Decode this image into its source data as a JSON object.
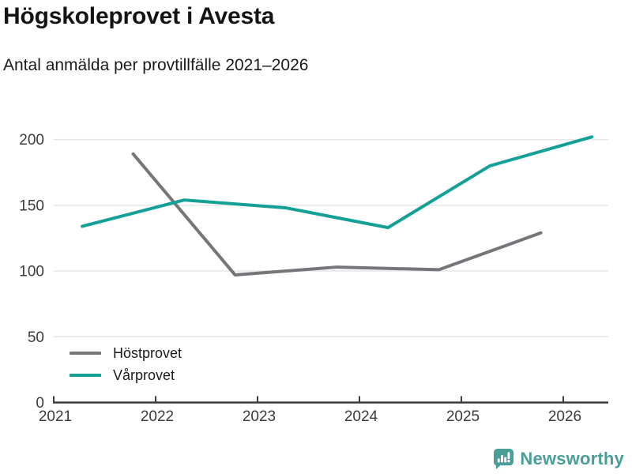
{
  "header": {
    "title": "Högskoleprovet i Avesta",
    "subtitle": "Antal anmälda per provtillfälle 2021–2026"
  },
  "chart_data": {
    "type": "line",
    "title": "Högskoleprovet i Avesta",
    "subtitle": "Antal anmälda per provtillfälle 2021–2026",
    "xlabel": "",
    "ylabel": "",
    "x_tick_labels": [
      "2021",
      "2022",
      "2023",
      "2024",
      "2025",
      "2026"
    ],
    "x_ticks": [
      2021,
      2022,
      2023,
      2024,
      2025,
      2026
    ],
    "y_tick_labels": [
      "0",
      "50",
      "100",
      "150",
      "200"
    ],
    "y_ticks": [
      0,
      50,
      100,
      150,
      200
    ],
    "x_range": [
      2021,
      2026.44
    ],
    "y_range": [
      0,
      204
    ],
    "grid": "horizontal-only",
    "legend_position": "inside-bottom-left",
    "series": [
      {
        "name": "Höstprovet",
        "color": "#75767a",
        "x": [
          2021.78,
          2022.78,
          2023.78,
          2024.78,
          2025.78
        ],
        "values": [
          189,
          97,
          103,
          101,
          129
        ]
      },
      {
        "name": "Vårprovet",
        "color": "#14a097",
        "x": [
          2021.28,
          2022.28,
          2023.28,
          2024.28,
          2025.28,
          2026.28
        ],
        "values": [
          134,
          154,
          148,
          133,
          180,
          202
        ]
      }
    ]
  },
  "legend": {
    "items": [
      {
        "label": "Höstprovet",
        "color": "#75767a"
      },
      {
        "label": "Vårprovet",
        "color": "#14a097"
      }
    ]
  },
  "branding": {
    "name": "Newsworthy",
    "color": "#4a9e9a",
    "icon": "newsworthy-bar-chart-bubble-icon"
  },
  "style": {
    "axis_color": "#3b3b3b",
    "gridline_color": "#e6e6e6",
    "tick_label_color": "#3b3b3b"
  }
}
